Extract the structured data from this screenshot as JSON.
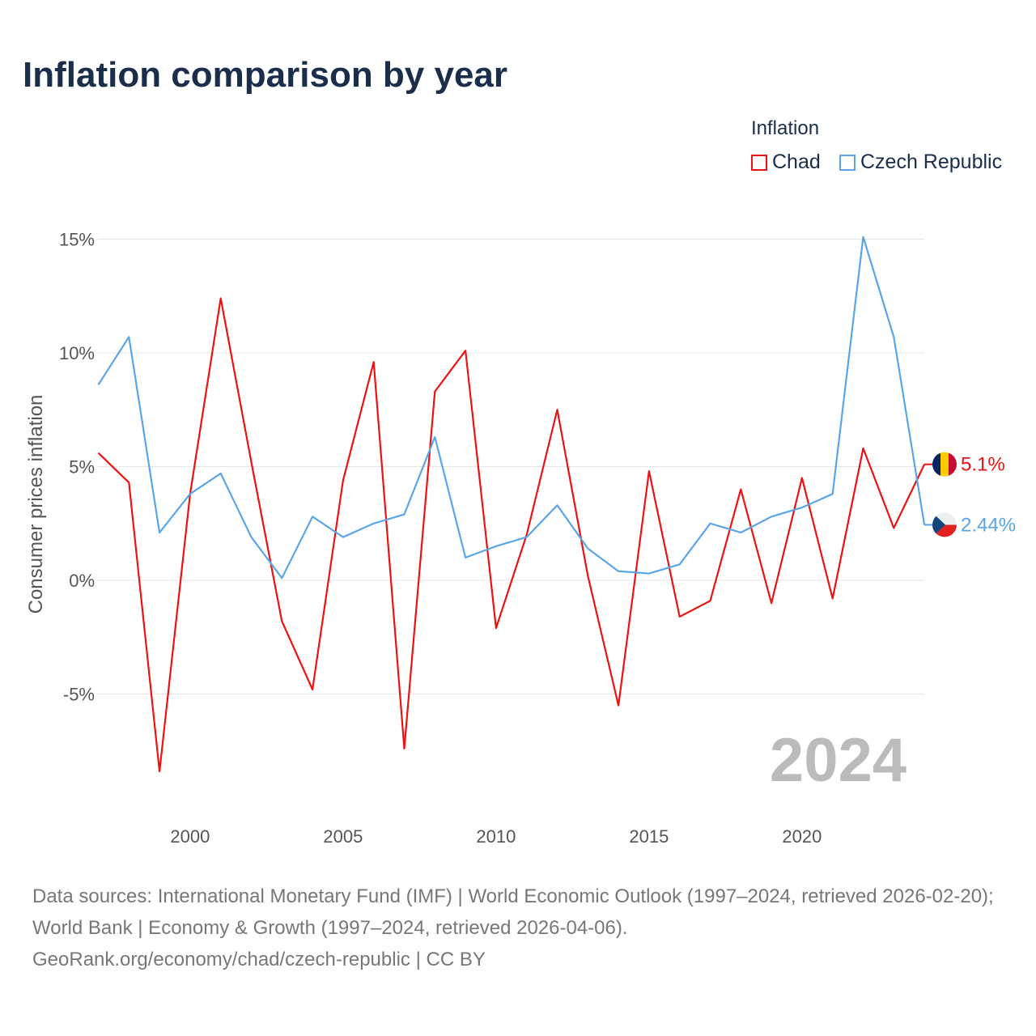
{
  "chart_data": {
    "type": "line",
    "title": "Inflation comparison by year",
    "xlabel": "",
    "ylabel": "Consumer prices inflation",
    "legend_title": "Inflation",
    "legend_position": "top-right",
    "x": [
      1997,
      1998,
      1999,
      2000,
      2001,
      2002,
      2003,
      2004,
      2005,
      2006,
      2007,
      2008,
      2009,
      2010,
      2011,
      2012,
      2013,
      2014,
      2015,
      2016,
      2017,
      2018,
      2019,
      2020,
      2021,
      2022,
      2023,
      2024
    ],
    "xlim": [
      1997,
      2024
    ],
    "ylim": [
      -10,
      16
    ],
    "x_ticks": [
      2000,
      2005,
      2010,
      2015,
      2020
    ],
    "x_tick_labels": [
      "2000",
      "2005",
      "2010",
      "2015",
      "2020"
    ],
    "y_ticks": [
      15,
      10,
      5,
      0,
      -5
    ],
    "y_tick_labels": [
      "15%",
      "10%",
      "5%",
      "0%",
      "-5%"
    ],
    "grid": true,
    "year_watermark": "2024",
    "series": [
      {
        "name": "Chad",
        "color": "#ee1111",
        "end_label": "5.1%",
        "values": [
          5.6,
          4.3,
          -8.4,
          3.8,
          12.4,
          5.2,
          -1.8,
          -4.8,
          4.4,
          9.6,
          -7.4,
          8.3,
          10.1,
          -2.1,
          2.0,
          7.5,
          0.2,
          -5.5,
          4.8,
          -1.6,
          -0.9,
          4.0,
          -1.0,
          4.5,
          -0.8,
          5.8,
          2.3,
          5.1
        ]
      },
      {
        "name": "Czech Republic",
        "color": "#5aa5e8",
        "end_label": "2.44%",
        "values": [
          8.6,
          10.7,
          2.1,
          3.8,
          4.7,
          1.9,
          0.1,
          2.8,
          1.9,
          2.5,
          2.9,
          6.3,
          1.0,
          1.5,
          1.9,
          3.3,
          1.4,
          0.4,
          0.3,
          0.7,
          2.5,
          2.1,
          2.8,
          3.2,
          3.8,
          15.1,
          10.7,
          2.44
        ]
      }
    ]
  },
  "footer": {
    "sources": "Data sources: International Monetary Fund (IMF) | World Economic Outlook (1997–2024, retrieved 2026-02-20); World Bank | Economy & Growth (1997–2024, retrieved 2026-04-06).",
    "credit": "GeoRank.org/economy/chad/czech-republic | CC BY"
  }
}
